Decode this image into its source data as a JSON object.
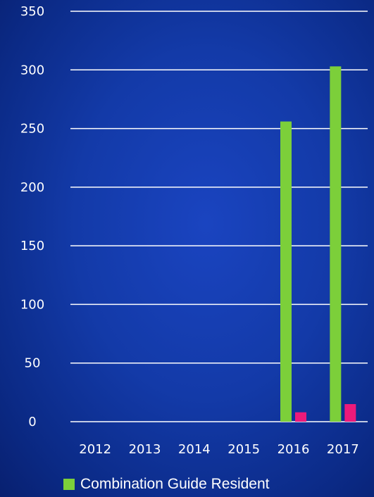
{
  "chart_data": {
    "type": "bar",
    "categories": [
      "2012",
      "2013",
      "2014",
      "2015",
      "2016",
      "2017"
    ],
    "series": [
      {
        "name": "Combination Guide Resident",
        "values": [
          0,
          0,
          0,
          0,
          256,
          303
        ],
        "color": "#7ccf3a"
      },
      {
        "values": [
          0,
          0,
          0,
          0,
          8,
          15
        ],
        "color": "#ec1a7a"
      }
    ],
    "yticks": [
      "0",
      "50",
      "100",
      "150",
      "200",
      "250",
      "300",
      "350"
    ],
    "ylim": [
      0,
      350
    ],
    "grid": true,
    "legend": "bottom",
    "gridline_color": "#ffffff"
  }
}
